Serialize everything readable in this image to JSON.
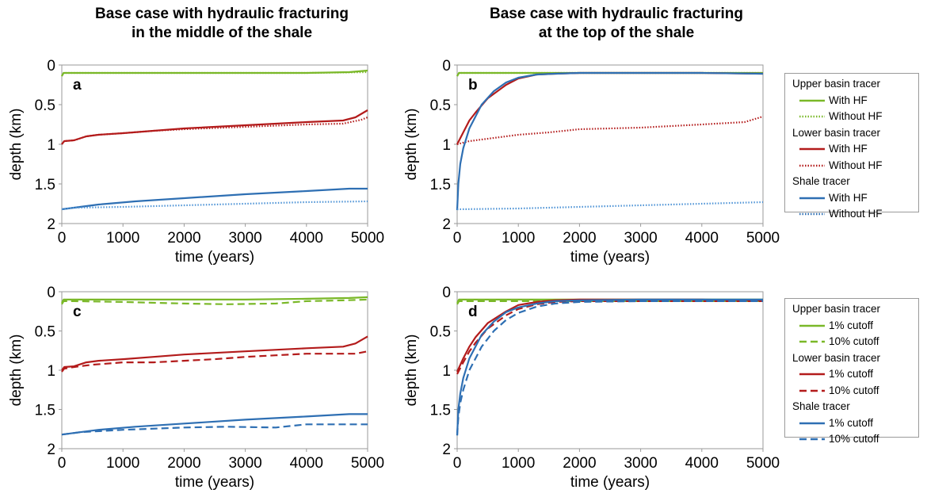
{
  "titles": {
    "left": [
      "Base case with hydraulic fracturing",
      "in the middle of the shale"
    ],
    "right": [
      "Base case with hydraulic fracturing",
      "at the top of the shale"
    ]
  },
  "colors": {
    "upper": "#7ab828",
    "lower": "#b31b1b",
    "shale": "#2e6fb3",
    "shale_dotted": "#4f94d6"
  },
  "legends": [
    {
      "groups": [
        {
          "label": "Upper basin tracer",
          "color": "#7ab828",
          "entries": [
            {
              "label": "With HF",
              "style": "solid"
            },
            {
              "label": "Without HF",
              "style": "dotted"
            }
          ]
        },
        {
          "label": "Lower basin tracer",
          "color": "#b31b1b",
          "entries": [
            {
              "label": "With HF",
              "style": "solid"
            },
            {
              "label": "Without HF",
              "style": "dotted"
            }
          ]
        },
        {
          "label": "Shale tracer",
          "color": "#2e6fb3",
          "entries": [
            {
              "label": "With HF",
              "style": "solid"
            },
            {
              "label": "Without HF",
              "style": "dotted"
            }
          ]
        }
      ]
    },
    {
      "groups": [
        {
          "label": "Upper basin tracer",
          "color": "#7ab828",
          "entries": [
            {
              "label": "1% cutoff",
              "style": "solid"
            },
            {
              "label": "10% cutoff",
              "style": "dashed"
            }
          ]
        },
        {
          "label": "Lower basin tracer",
          "color": "#b31b1b",
          "entries": [
            {
              "label": "1% cutoff",
              "style": "solid"
            },
            {
              "label": "10% cutoff",
              "style": "dashed"
            }
          ]
        },
        {
          "label": "Shale tracer",
          "color": "#2e6fb3",
          "entries": [
            {
              "label": "1% cutoff",
              "style": "solid"
            },
            {
              "label": "10% cutoff",
              "style": "dashed"
            }
          ]
        }
      ]
    }
  ],
  "chart_data": [
    {
      "panel": "a",
      "type": "line",
      "xlabel": "time (years)",
      "ylabel": "depth (km)",
      "xlim": [
        0,
        5000
      ],
      "ylim": [
        0,
        2
      ],
      "y_inverted": true,
      "xticks": [
        "0",
        "1000",
        "2000",
        "3000",
        "4000",
        "5000"
      ],
      "yticks": [
        "0",
        "0.5",
        "1",
        "1.5",
        "2"
      ],
      "series": [
        {
          "tracer": "upper",
          "style": "solid",
          "x": [
            0,
            30,
            100,
            1000,
            2000,
            3000,
            4000,
            4700,
            5000
          ],
          "y": [
            0.14,
            0.1,
            0.1,
            0.1,
            0.1,
            0.1,
            0.1,
            0.09,
            0.07
          ]
        },
        {
          "tracer": "upper",
          "style": "dotted",
          "x": [
            0,
            30,
            100,
            1000,
            2000,
            3000,
            4000,
            5000
          ],
          "y": [
            0.14,
            0.1,
            0.1,
            0.1,
            0.1,
            0.1,
            0.1,
            0.09
          ]
        },
        {
          "tracer": "lower",
          "style": "solid",
          "x": [
            0,
            40,
            200,
            400,
            600,
            1000,
            1500,
            2000,
            3000,
            4000,
            4600,
            4800,
            5000
          ],
          "y": [
            1.0,
            0.96,
            0.95,
            0.9,
            0.88,
            0.86,
            0.83,
            0.8,
            0.76,
            0.72,
            0.7,
            0.66,
            0.57
          ]
        },
        {
          "tracer": "lower",
          "style": "dotted",
          "x": [
            0,
            40,
            200,
            400,
            600,
            1000,
            1500,
            2000,
            3000,
            4000,
            4600,
            4900,
            5000
          ],
          "y": [
            1.0,
            0.96,
            0.95,
            0.9,
            0.88,
            0.86,
            0.83,
            0.81,
            0.78,
            0.75,
            0.74,
            0.69,
            0.66
          ]
        },
        {
          "tracer": "shale",
          "style": "solid",
          "x": [
            0,
            200,
            600,
            1200,
            2000,
            3000,
            4000,
            4700,
            5000
          ],
          "y": [
            1.82,
            1.8,
            1.76,
            1.72,
            1.68,
            1.63,
            1.59,
            1.56,
            1.56
          ]
        },
        {
          "tracer": "shale",
          "style": "dotted",
          "x": [
            0,
            200,
            1000,
            2000,
            3000,
            4000,
            5000
          ],
          "y": [
            1.82,
            1.8,
            1.79,
            1.77,
            1.75,
            1.73,
            1.72
          ]
        }
      ]
    },
    {
      "panel": "b",
      "type": "line",
      "xlabel": "time (years)",
      "ylabel": "depth (km)",
      "xlim": [
        0,
        5000
      ],
      "ylim": [
        0,
        2
      ],
      "y_inverted": true,
      "xticks": [
        "0",
        "1000",
        "2000",
        "3000",
        "4000",
        "5000"
      ],
      "yticks": [
        "0",
        "0.5",
        "1",
        "1.5",
        "2"
      ],
      "series": [
        {
          "tracer": "upper",
          "style": "solid",
          "x": [
            0,
            30,
            100,
            1000,
            2000,
            3000,
            4000,
            5000
          ],
          "y": [
            0.14,
            0.1,
            0.1,
            0.1,
            0.1,
            0.1,
            0.1,
            0.1
          ]
        },
        {
          "tracer": "upper",
          "style": "dotted",
          "x": [
            0,
            30,
            100,
            1000,
            2000,
            3000,
            4000,
            5000
          ],
          "y": [
            0.14,
            0.1,
            0.1,
            0.1,
            0.1,
            0.1,
            0.1,
            0.1
          ]
        },
        {
          "tracer": "lower",
          "style": "solid",
          "x": [
            0,
            100,
            200,
            300,
            500,
            800,
            1000,
            1300,
            1600,
            2000,
            3000,
            4000,
            5000
          ],
          "y": [
            1.0,
            0.85,
            0.7,
            0.6,
            0.42,
            0.25,
            0.17,
            0.12,
            0.11,
            0.1,
            0.1,
            0.1,
            0.11
          ]
        },
        {
          "tracer": "lower",
          "style": "dotted",
          "x": [
            0,
            200,
            600,
            1000,
            1500,
            2000,
            3000,
            4000,
            4700,
            5000
          ],
          "y": [
            1.0,
            0.96,
            0.92,
            0.88,
            0.85,
            0.81,
            0.79,
            0.75,
            0.72,
            0.65
          ]
        },
        {
          "tracer": "shale",
          "style": "solid",
          "x": [
            0,
            20,
            50,
            100,
            200,
            400,
            600,
            800,
            1000,
            1300,
            1600,
            2000,
            3000,
            4000,
            5000
          ],
          "y": [
            1.83,
            1.5,
            1.25,
            1.05,
            0.8,
            0.5,
            0.33,
            0.22,
            0.16,
            0.12,
            0.11,
            0.1,
            0.1,
            0.1,
            0.11
          ]
        },
        {
          "tracer": "shale",
          "style": "dotted",
          "x": [
            0,
            1000,
            2000,
            3000,
            4000,
            5000
          ],
          "y": [
            1.82,
            1.81,
            1.79,
            1.77,
            1.75,
            1.73
          ]
        }
      ]
    },
    {
      "panel": "c",
      "type": "line",
      "xlabel": "time (years)",
      "ylabel": "depth (km)",
      "xlim": [
        0,
        5000
      ],
      "ylim": [
        0,
        2
      ],
      "y_inverted": true,
      "xticks": [
        "0",
        "1000",
        "2000",
        "3000",
        "4000",
        "5000"
      ],
      "yticks": [
        "0",
        "0.5",
        "1",
        "1.5",
        "2"
      ],
      "series": [
        {
          "tracer": "upper",
          "style": "solid",
          "x": [
            0,
            30,
            100,
            1000,
            2000,
            3000,
            4000,
            4700,
            5000
          ],
          "y": [
            0.14,
            0.1,
            0.1,
            0.1,
            0.1,
            0.1,
            0.09,
            0.08,
            0.07
          ]
        },
        {
          "tracer": "upper",
          "style": "dashed",
          "x": [
            0,
            30,
            200,
            1000,
            2000,
            2700,
            3500,
            4000,
            4600,
            5000
          ],
          "y": [
            0.16,
            0.12,
            0.12,
            0.13,
            0.15,
            0.16,
            0.15,
            0.12,
            0.11,
            0.1
          ]
        },
        {
          "tracer": "lower",
          "style": "solid",
          "x": [
            0,
            40,
            200,
            400,
            600,
            1000,
            1500,
            2000,
            3000,
            4000,
            4600,
            4800,
            5000
          ],
          "y": [
            1.0,
            0.96,
            0.95,
            0.9,
            0.88,
            0.86,
            0.83,
            0.8,
            0.76,
            0.72,
            0.7,
            0.66,
            0.57
          ]
        },
        {
          "tracer": "lower",
          "style": "dashed",
          "x": [
            0,
            40,
            200,
            500,
            1000,
            1500,
            2000,
            2500,
            3000,
            3500,
            4000,
            4500,
            4800,
            5000
          ],
          "y": [
            1.02,
            0.98,
            0.96,
            0.93,
            0.9,
            0.9,
            0.88,
            0.86,
            0.83,
            0.81,
            0.79,
            0.79,
            0.79,
            0.76
          ]
        },
        {
          "tracer": "shale",
          "style": "solid",
          "x": [
            0,
            200,
            600,
            1200,
            2000,
            3000,
            4000,
            4700,
            5000
          ],
          "y": [
            1.82,
            1.8,
            1.76,
            1.72,
            1.68,
            1.63,
            1.59,
            1.56,
            1.56
          ]
        },
        {
          "tracer": "shale",
          "style": "dashed",
          "x": [
            0,
            300,
            1000,
            2000,
            2700,
            3500,
            4000,
            4600,
            5000
          ],
          "y": [
            1.82,
            1.79,
            1.76,
            1.73,
            1.72,
            1.73,
            1.69,
            1.69,
            1.69
          ]
        }
      ]
    },
    {
      "panel": "d",
      "type": "line",
      "xlabel": "time (years)",
      "ylabel": "depth (km)",
      "xlim": [
        0,
        5000
      ],
      "ylim": [
        0,
        2
      ],
      "y_inverted": true,
      "xticks": [
        "0",
        "1000",
        "2000",
        "3000",
        "4000",
        "5000"
      ],
      "yticks": [
        "0",
        "0.5",
        "1",
        "1.5",
        "2"
      ],
      "series": [
        {
          "tracer": "upper",
          "style": "solid",
          "x": [
            0,
            30,
            100,
            1000,
            2000,
            3000,
            4000,
            5000
          ],
          "y": [
            0.14,
            0.1,
            0.1,
            0.1,
            0.1,
            0.1,
            0.1,
            0.1
          ]
        },
        {
          "tracer": "upper",
          "style": "dashed",
          "x": [
            0,
            30,
            100,
            1000,
            2000,
            3000,
            4000,
            5000
          ],
          "y": [
            0.16,
            0.12,
            0.12,
            0.12,
            0.12,
            0.12,
            0.12,
            0.12
          ]
        },
        {
          "tracer": "lower",
          "style": "solid",
          "x": [
            0,
            100,
            200,
            300,
            500,
            800,
            1000,
            1300,
            1600,
            2000,
            3000,
            4000,
            5000
          ],
          "y": [
            1.02,
            0.85,
            0.7,
            0.58,
            0.4,
            0.25,
            0.17,
            0.13,
            0.11,
            0.1,
            0.1,
            0.1,
            0.11
          ]
        },
        {
          "tracer": "lower",
          "style": "dashed",
          "x": [
            0,
            100,
            200,
            300,
            500,
            800,
            1000,
            1300,
            1600,
            2000,
            3000,
            4000,
            5000
          ],
          "y": [
            1.05,
            0.9,
            0.76,
            0.65,
            0.47,
            0.3,
            0.22,
            0.16,
            0.13,
            0.12,
            0.12,
            0.12,
            0.12
          ]
        },
        {
          "tracer": "shale",
          "style": "solid",
          "x": [
            0,
            20,
            50,
            100,
            200,
            400,
            600,
            800,
            1000,
            1300,
            1600,
            2000,
            3000,
            4000,
            5000
          ],
          "y": [
            1.83,
            1.5,
            1.3,
            1.1,
            0.85,
            0.55,
            0.38,
            0.26,
            0.2,
            0.15,
            0.12,
            0.11,
            0.1,
            0.1,
            0.1
          ]
        },
        {
          "tracer": "shale",
          "style": "dashed",
          "x": [
            0,
            20,
            50,
            100,
            200,
            400,
            600,
            800,
            1000,
            1300,
            1600,
            2000,
            3000,
            4000,
            5000
          ],
          "y": [
            1.83,
            1.6,
            1.42,
            1.25,
            1.0,
            0.7,
            0.5,
            0.36,
            0.27,
            0.19,
            0.15,
            0.13,
            0.12,
            0.12,
            0.12
          ]
        }
      ]
    }
  ]
}
